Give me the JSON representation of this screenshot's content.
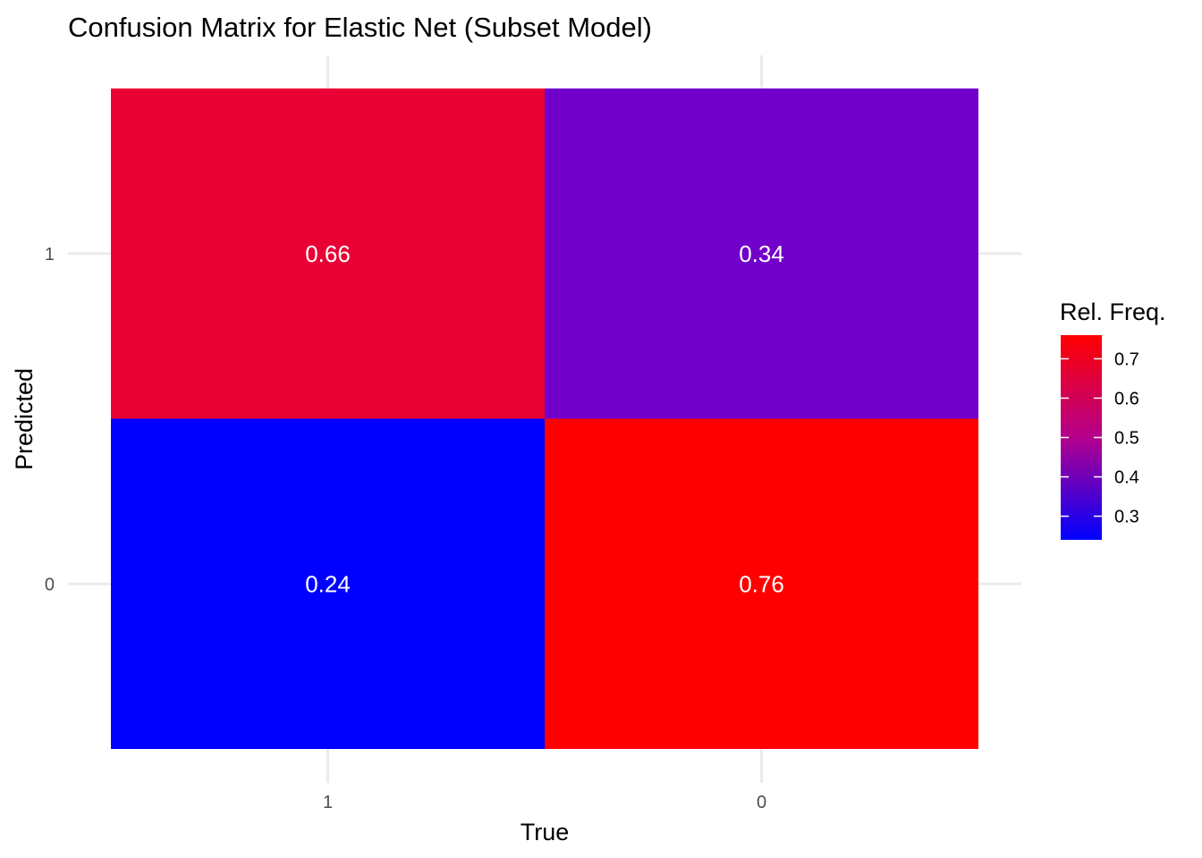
{
  "chart_data": {
    "type": "heatmap",
    "title": "Confusion Matrix for Elastic Net (Subset Model)",
    "xlabel": "True",
    "ylabel": "Predicted",
    "x_categories": [
      "1",
      "0"
    ],
    "y_categories": [
      "1",
      "0"
    ],
    "cells": [
      {
        "x": "1",
        "y": "1",
        "value": 0.66,
        "label": "0.66"
      },
      {
        "x": "0",
        "y": "1",
        "value": 0.34,
        "label": "0.34"
      },
      {
        "x": "1",
        "y": "0",
        "value": 0.24,
        "label": "0.24"
      },
      {
        "x": "0",
        "y": "0",
        "value": 0.76,
        "label": "0.76"
      }
    ],
    "legend": {
      "title": "Rel. Freq.",
      "ticks": [
        "0.3",
        "0.4",
        "0.5",
        "0.6",
        "0.7"
      ],
      "range": [
        0.24,
        0.76
      ],
      "low_color": "#0000ff",
      "high_color": "#ff0000"
    },
    "grid": true
  }
}
